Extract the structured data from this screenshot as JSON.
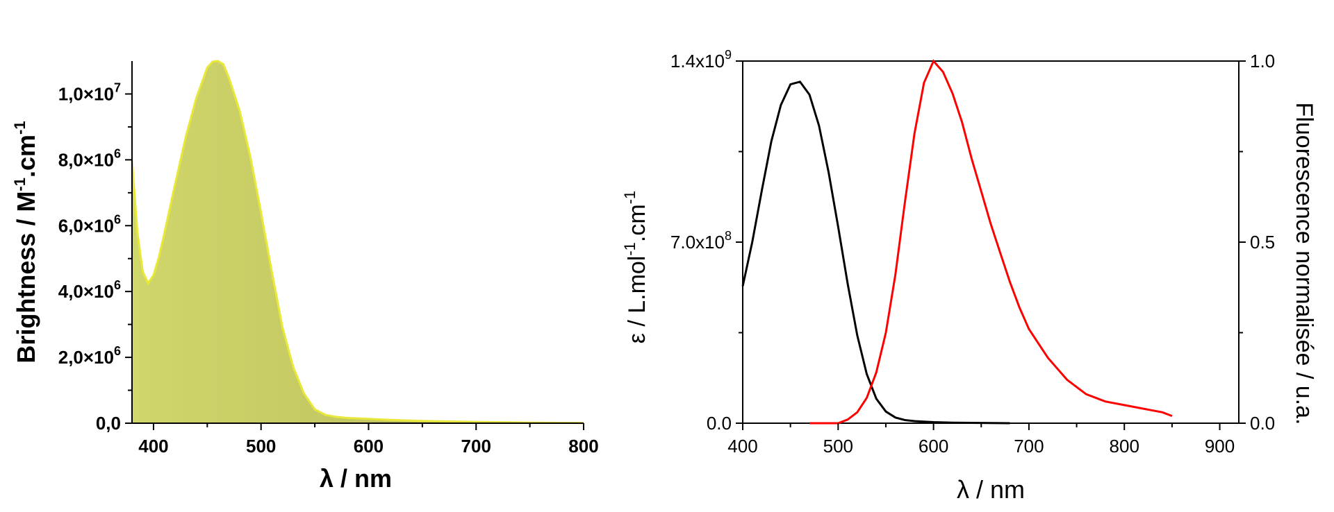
{
  "chart_data": [
    {
      "type": "area",
      "xlabel": "λ / nm",
      "ylabel_main": "Brightness / M",
      "ylabel_sup1": "-1",
      "ylabel_mid": ".cm",
      "ylabel_sup2": "-1",
      "xlim": [
        380,
        800
      ],
      "ylim": [
        0,
        11000000
      ],
      "x_ticks": [
        {
          "value": 400,
          "label": "400"
        },
        {
          "value": 500,
          "label": "500"
        },
        {
          "value": 600,
          "label": "600"
        },
        {
          "value": 700,
          "label": "700"
        },
        {
          "value": 800,
          "label": "800"
        }
      ],
      "y_ticks": [
        {
          "value": 0,
          "label": "0,0",
          "exp": ""
        },
        {
          "value": 2000000,
          "label": "2,0×10",
          "exp": "6"
        },
        {
          "value": 4000000,
          "label": "4,0×10",
          "exp": "6"
        },
        {
          "value": 6000000,
          "label": "6,0×10",
          "exp": "6"
        },
        {
          "value": 8000000,
          "label": "8,0×10",
          "exp": "6"
        },
        {
          "value": 10000000,
          "label": "1,0×10",
          "exp": "7"
        }
      ],
      "fill_color": "#c9c960",
      "line_color": "#e8e83a",
      "series": [
        {
          "x": [
            380,
            385,
            390,
            395,
            400,
            405,
            410,
            420,
            430,
            440,
            450,
            455,
            460,
            465,
            470,
            480,
            490,
            500,
            510,
            520,
            530,
            540,
            550,
            560,
            570,
            580,
            600,
            620,
            650,
            700,
            750,
            800
          ],
          "y": [
            8000000,
            5800000,
            4600000,
            4250000,
            4500000,
            5050000,
            5750000,
            7250000,
            8700000,
            9900000,
            10800000,
            10980000,
            11000000,
            10900000,
            10500000,
            9500000,
            8100000,
            6400000,
            4600000,
            2900000,
            1700000,
            900000,
            420000,
            250000,
            190000,
            160000,
            130000,
            100000,
            70000,
            40000,
            20000,
            5000
          ]
        }
      ]
    },
    {
      "type": "line",
      "xlabel": "λ / nm",
      "ylabel_left_main": "ε / L.mol",
      "ylabel_left_sup1": "-1",
      "ylabel_left_mid": ".cm",
      "ylabel_left_sup2": "-1",
      "ylabel_right": "Fluorescence normalisée / u.a.",
      "xlim": [
        400,
        920
      ],
      "ylim_left": [
        0,
        1400000000
      ],
      "ylim_right": [
        0,
        1.0
      ],
      "x_ticks": [
        {
          "value": 400,
          "label": "400"
        },
        {
          "value": 500,
          "label": "500"
        },
        {
          "value": 600,
          "label": "600"
        },
        {
          "value": 700,
          "label": "700"
        },
        {
          "value": 800,
          "label": "800"
        },
        {
          "value": 900,
          "label": "900"
        }
      ],
      "y_left_ticks": [
        {
          "value": 0,
          "label": "0.0",
          "exp": ""
        },
        {
          "value": 700000000,
          "label": "7.0x10",
          "exp": "8"
        },
        {
          "value": 1400000000,
          "label": "1.4x10",
          "exp": "9"
        }
      ],
      "y_right_ticks": [
        {
          "value": 0,
          "label": "0.0"
        },
        {
          "value": 0.5,
          "label": "0.5"
        },
        {
          "value": 1.0,
          "label": "1.0"
        }
      ],
      "series": [
        {
          "axis": "left",
          "color": "#000000",
          "x": [
            400,
            410,
            420,
            430,
            440,
            450,
            460,
            470,
            480,
            490,
            500,
            510,
            520,
            530,
            540,
            550,
            560,
            570,
            580,
            600,
            620,
            650,
            680
          ],
          "y": [
            530000000,
            700000000,
            900000000,
            1090000000,
            1230000000,
            1310000000,
            1320000000,
            1270000000,
            1150000000,
            970000000,
            760000000,
            540000000,
            340000000,
            190000000,
            95000000,
            45000000,
            22000000,
            12000000,
            8000000,
            4000000,
            2000000,
            1000000,
            0
          ]
        },
        {
          "axis": "right",
          "color": "#ff0000",
          "x": [
            470,
            500,
            510,
            520,
            530,
            540,
            550,
            560,
            570,
            580,
            590,
            600,
            610,
            620,
            630,
            640,
            650,
            660,
            670,
            680,
            690,
            700,
            720,
            740,
            760,
            780,
            800,
            820,
            840,
            850
          ],
          "y": [
            0.0,
            0.0,
            0.01,
            0.03,
            0.07,
            0.14,
            0.25,
            0.41,
            0.61,
            0.8,
            0.94,
            1.0,
            0.97,
            0.91,
            0.83,
            0.73,
            0.64,
            0.55,
            0.47,
            0.39,
            0.32,
            0.26,
            0.18,
            0.12,
            0.08,
            0.06,
            0.05,
            0.04,
            0.03,
            0.02
          ]
        }
      ]
    }
  ]
}
